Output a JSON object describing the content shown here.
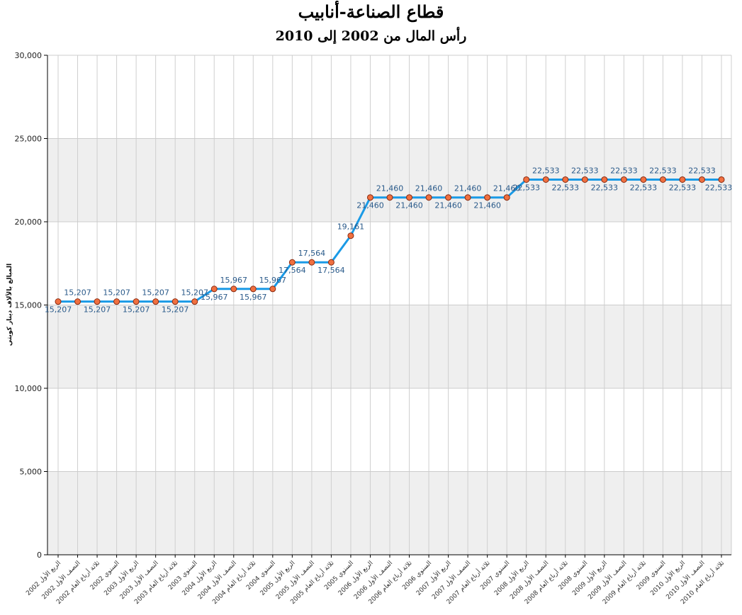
{
  "chart_data": {
    "type": "line",
    "title": "قطاع الصناعة-أنابيب",
    "subtitle": "رأس المال من 2002 إلى 2010",
    "ylabel": "المبالغ بالآلاف دينار كويتي",
    "xlabel": "",
    "ylim": [
      0,
      30000
    ],
    "yticks": [
      "0",
      "5,000",
      "10,000",
      "15,000",
      "20,000",
      "25,000",
      "30,000"
    ],
    "grid": true,
    "legend": "none",
    "line_color": "#1a9ae6",
    "marker_color": "#f07040",
    "categories": [
      "2002 الربع الأول",
      "2002 النصف الأول",
      "2002 ثلاثة أرباع العام",
      "2002 السنوي",
      "2003 الربع الأول",
      "2003 النصف الأول",
      "2003 ثلاثة أرباع العام",
      "2003 السنوي",
      "2004 الربع الأول",
      "2004 النصف الأول",
      "2004 ثلاثة أرباع العام",
      "2004 السنوي",
      "2005 الربع الأول",
      "2005 النصف الأول",
      "2005 ثلاثة أرباع العام",
      "2005 السنوي",
      "2006 الربع الأول",
      "2006 النصف الأول",
      "2006 ثلاثة أرباع العام",
      "2006 السنوي",
      "2007 الربع الأول",
      "2007 النصف الأول",
      "2007 ثلاثة أرباع العام",
      "2007 السنوي",
      "2008 الربع الأول",
      "2008 النصف الأول",
      "2008 ثلاثة أرباع العام",
      "2008 السنوي",
      "2009 الربع الأول",
      "2009 النصف الأول",
      "2009 ثلاثة أرباع العام",
      "2009 السنوي",
      "2010 الربع الأول",
      "2010 النصف الأول",
      "2010 ثلاثة أرباع العام"
    ],
    "values": [
      15207,
      15207,
      15207,
      15207,
      15207,
      15207,
      15207,
      15207,
      15967,
      15967,
      15967,
      15967,
      17564,
      17564,
      17564,
      19161,
      21460,
      21460,
      21460,
      21460,
      21460,
      21460,
      21460,
      21460,
      22533,
      22533,
      22533,
      22533,
      22533,
      22533,
      22533,
      22533,
      22533,
      22533,
      22533
    ],
    "value_labels": [
      "15,207",
      "15,207",
      "15,207",
      "15,207",
      "15,207",
      "15,207",
      "15,207",
      "15,207",
      "15,967",
      "15,967",
      "15,967",
      "15,967",
      "17,564",
      "17,564",
      "17,564",
      "19,161",
      "21,460",
      "21,460",
      "21,460",
      "21,460",
      "21,460",
      "21,460",
      "21,460",
      "21,460",
      "22,533",
      "22,533",
      "22,533",
      "22,533",
      "22,533",
      "22,533",
      "22,533",
      "22,533",
      "22,533",
      "22,533",
      "22,533"
    ]
  }
}
